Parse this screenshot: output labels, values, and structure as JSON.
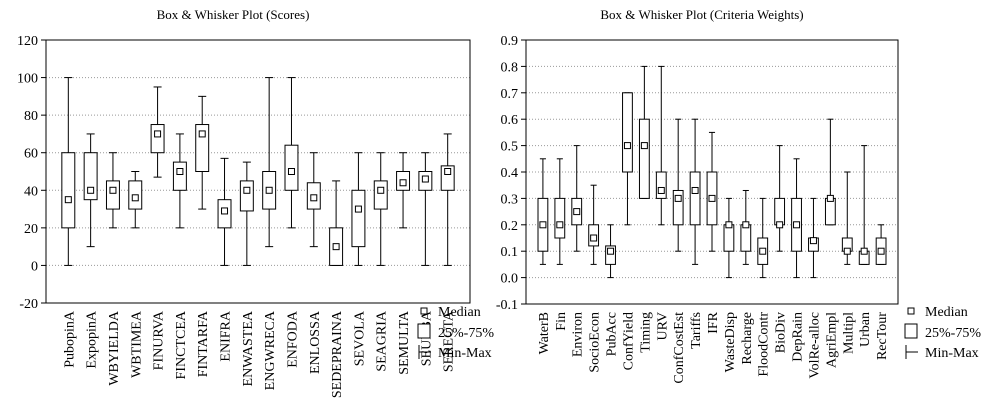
{
  "chart_data": [
    {
      "type": "box",
      "title": "Box & Whisker Plot (Scores)",
      "ylim": [
        -20,
        120
      ],
      "yticks": [
        "-20",
        "0",
        "20",
        "40",
        "60",
        "80",
        "100",
        "120"
      ],
      "ytick_values": [
        -20,
        0,
        20,
        40,
        60,
        80,
        100,
        120
      ],
      "grid": "horizontal dotted",
      "legend_placement": "right",
      "legend": [
        "Median",
        "25%-75%",
        "Min-Max"
      ],
      "categories": [
        "PubopinA",
        "ExpopinA",
        "WBYIELDA",
        "WBTIMEA",
        "FINURVA",
        "FINCTCEA",
        "FINTARFA",
        "ENIFRA",
        "ENWASTEA",
        "ENGWRECA",
        "ENFODA",
        "ENLOSSA",
        "SEDEPRAINA",
        "SEVOLA",
        "SEAGRIA",
        "SEMULTA",
        "SEURBA",
        "SERECTA"
      ],
      "boxes": [
        {
          "min": 0,
          "q1": 20,
          "median": 35,
          "q3": 60,
          "max": 100
        },
        {
          "min": 10,
          "q1": 35,
          "median": 40,
          "q3": 60,
          "max": 70
        },
        {
          "min": 20,
          "q1": 30,
          "median": 40,
          "q3": 45,
          "max": 60
        },
        {
          "min": 20,
          "q1": 30,
          "median": 36,
          "q3": 45,
          "max": 50
        },
        {
          "min": 47,
          "q1": 60,
          "median": 70,
          "q3": 75,
          "max": 95
        },
        {
          "min": 20,
          "q1": 40,
          "median": 50,
          "q3": 55,
          "max": 70
        },
        {
          "min": 30,
          "q1": 50,
          "median": 70,
          "q3": 75,
          "max": 90
        },
        {
          "min": 0,
          "q1": 20,
          "median": 29,
          "q3": 35,
          "max": 57
        },
        {
          "min": 0,
          "q1": 29,
          "median": 40,
          "q3": 45,
          "max": 55
        },
        {
          "min": 10,
          "q1": 30,
          "median": 40,
          "q3": 50,
          "max": 100
        },
        {
          "min": 20,
          "q1": 40,
          "median": 50,
          "q3": 64,
          "max": 100
        },
        {
          "min": 10,
          "q1": 30,
          "median": 36,
          "q3": 44,
          "max": 60
        },
        {
          "min": 0,
          "q1": 0,
          "median": 10,
          "q3": 20,
          "max": 45
        },
        {
          "min": 0,
          "q1": 10,
          "median": 30,
          "q3": 40,
          "max": 60
        },
        {
          "min": 0,
          "q1": 30,
          "median": 40,
          "q3": 45,
          "max": 60
        },
        {
          "min": 20,
          "q1": 40,
          "median": 44,
          "q3": 50,
          "max": 60
        },
        {
          "min": 0,
          "q1": 40,
          "median": 46,
          "q3": 50,
          "max": 60
        },
        {
          "min": 0,
          "q1": 40,
          "median": 50,
          "q3": 53,
          "max": 70
        }
      ]
    },
    {
      "type": "box",
      "title": "Box & Whisker Plot (Criteria Weights)",
      "ylim": [
        -0.1,
        0.9
      ],
      "yticks": [
        "-0.1",
        "0.0",
        "0.1",
        "0.2",
        "0.3",
        "0.4",
        "0.5",
        "0.6",
        "0.7",
        "0.8",
        "0.9"
      ],
      "ytick_values": [
        -0.1,
        0,
        0.1,
        0.2,
        0.3,
        0.4,
        0.5,
        0.6,
        0.7,
        0.8,
        0.9
      ],
      "grid": "horizontal dotted",
      "legend_placement": "right",
      "legend": [
        "Median",
        "25%-75%",
        "Min-Max"
      ],
      "categories": [
        "WaterB",
        "Fin",
        "Environ",
        "SocioEcon",
        "PubAcc",
        "ConfYield",
        "Timing",
        "URV",
        "ConfCostEst",
        "Tariffs",
        "IFR",
        "WasteDisp",
        "Recharge",
        "FloodContr",
        "BioDiv",
        "DepRain",
        "VolRe-alloc",
        "AgriEmpl",
        "Multipl",
        "Urban",
        "RecTour"
      ],
      "boxes": [
        {
          "min": 0.05,
          "q1": 0.1,
          "median": 0.2,
          "q3": 0.3,
          "max": 0.45
        },
        {
          "min": 0.05,
          "q1": 0.15,
          "median": 0.2,
          "q3": 0.3,
          "max": 0.45
        },
        {
          "min": 0.1,
          "q1": 0.2,
          "median": 0.25,
          "q3": 0.3,
          "max": 0.5
        },
        {
          "min": 0.05,
          "q1": 0.12,
          "median": 0.15,
          "q3": 0.2,
          "max": 0.35
        },
        {
          "min": 0.0,
          "q1": 0.05,
          "median": 0.1,
          "q3": 0.12,
          "max": 0.2
        },
        {
          "min": 0.2,
          "q1": 0.4,
          "median": 0.5,
          "q3": 0.7,
          "max": 0.7
        },
        {
          "min": 0.3,
          "q1": 0.3,
          "median": 0.5,
          "q3": 0.6,
          "max": 0.8
        },
        {
          "min": 0.2,
          "q1": 0.3,
          "median": 0.33,
          "q3": 0.4,
          "max": 0.8
        },
        {
          "min": 0.1,
          "q1": 0.2,
          "median": 0.3,
          "q3": 0.33,
          "max": 0.6
        },
        {
          "min": 0.05,
          "q1": 0.2,
          "median": 0.33,
          "q3": 0.4,
          "max": 0.6
        },
        {
          "min": 0.1,
          "q1": 0.2,
          "median": 0.3,
          "q3": 0.4,
          "max": 0.55
        },
        {
          "min": 0.0,
          "q1": 0.1,
          "median": 0.2,
          "q3": 0.2,
          "max": 0.3
        },
        {
          "min": 0.05,
          "q1": 0.1,
          "median": 0.2,
          "q3": 0.2,
          "max": 0.33
        },
        {
          "min": 0.0,
          "q1": 0.05,
          "median": 0.1,
          "q3": 0.15,
          "max": 0.3
        },
        {
          "min": 0.1,
          "q1": 0.2,
          "median": 0.2,
          "q3": 0.3,
          "max": 0.5
        },
        {
          "min": 0.0,
          "q1": 0.1,
          "median": 0.2,
          "q3": 0.3,
          "max": 0.45
        },
        {
          "min": 0.0,
          "q1": 0.1,
          "median": 0.14,
          "q3": 0.15,
          "max": 0.3
        },
        {
          "min": 0.2,
          "q1": 0.2,
          "median": 0.3,
          "q3": 0.3,
          "max": 0.6
        },
        {
          "min": 0.05,
          "q1": 0.1,
          "median": 0.1,
          "q3": 0.15,
          "max": 0.4
        },
        {
          "min": 0.05,
          "q1": 0.05,
          "median": 0.1,
          "q3": 0.1,
          "max": 0.5
        },
        {
          "min": 0.05,
          "q1": 0.05,
          "median": 0.1,
          "q3": 0.15,
          "max": 0.2
        }
      ]
    }
  ]
}
